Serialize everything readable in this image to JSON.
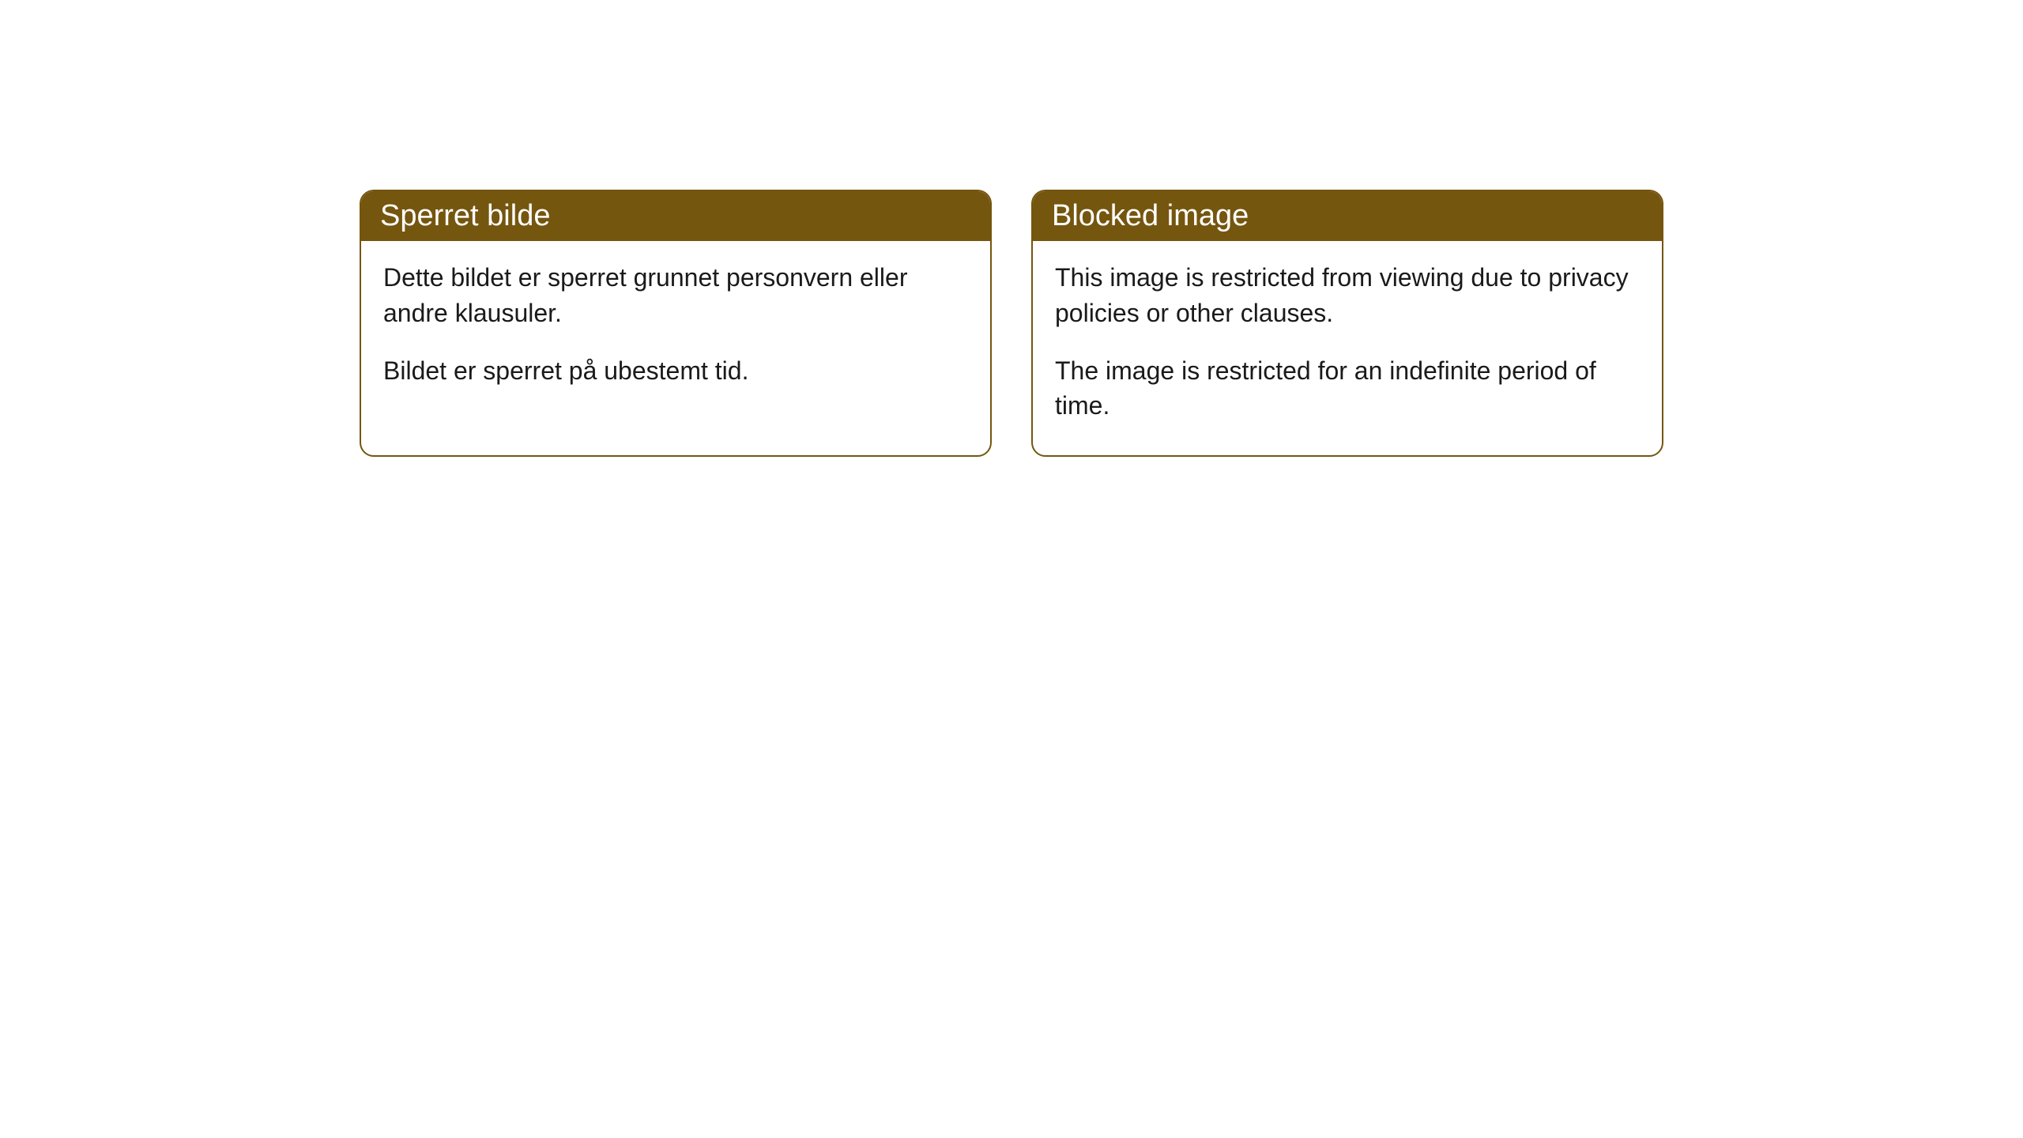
{
  "cards": [
    {
      "title": "Sperret bilde",
      "paragraph1": "Dette bildet er sperret grunnet personvern eller andre klausuler.",
      "paragraph2": "Bildet er sperret på ubestemt tid."
    },
    {
      "title": "Blocked image",
      "paragraph1": "This image is restricted from viewing due to privacy policies or other clauses.",
      "paragraph2": "The image is restricted for an indefinite period of time."
    }
  ],
  "styling": {
    "header_bg_color": "#75560f",
    "header_text_color": "#ffffff",
    "border_color": "#75560f",
    "body_bg_color": "#ffffff",
    "body_text_color": "#1a1a1a",
    "border_radius": 18,
    "header_fontsize": 38,
    "body_fontsize": 32
  }
}
